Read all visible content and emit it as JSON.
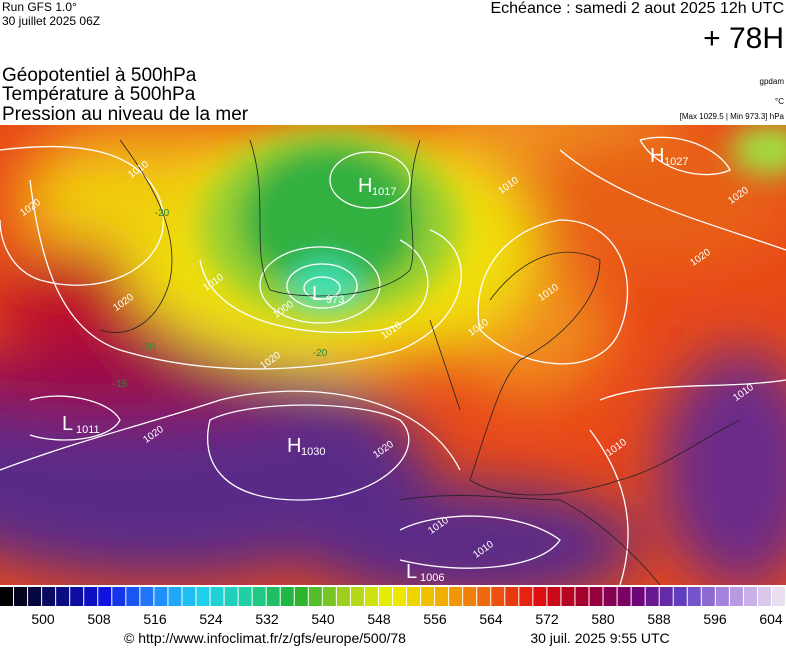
{
  "header": {
    "run": "Run GFS 1.0°",
    "run_date": "30 juillet 2025 06Z",
    "valid": "Echéance : samedi 2 aout 2025 12h UTC",
    "lead": "+ 78H",
    "fields": [
      "Géopotentiel à 500hPa",
      "Température à 500hPa",
      "Pression au niveau de la mer"
    ],
    "unit_geo": "gpdam",
    "unit_temp": "°C",
    "pressure_range": "[Max 1029.5 | Min 973.3] hPa"
  },
  "map": {
    "centers": [
      {
        "letter": "H",
        "pressure": 1017
      },
      {
        "letter": "L",
        "pressure": 973
      },
      {
        "letter": "H",
        "pressure": 1027
      },
      {
        "letter": "L",
        "pressure": 1011
      },
      {
        "letter": "H",
        "pressure": 1030
      },
      {
        "letter": "L",
        "pressure": 1006
      }
    ],
    "isobar_labels": [
      1010,
      1020,
      1020,
      1010,
      1000,
      1010,
      1020,
      1020,
      1020,
      1010,
      1020,
      1020,
      1010,
      1010,
      1010,
      1010,
      1010,
      1010
    ],
    "temperature_labels": [
      -20,
      -20,
      -20,
      -15
    ]
  },
  "colorbar": {
    "ticks": [
      500,
      508,
      516,
      524,
      532,
      540,
      548,
      556,
      564,
      572,
      580,
      588,
      596,
      604
    ],
    "stops": [
      "#000000",
      "#0a0a70",
      "#1010e0",
      "#2080ff",
      "#20d0f0",
      "#20d0a0",
      "#20b030",
      "#a0d020",
      "#f0f000",
      "#f0b000",
      "#f06010",
      "#e01010",
      "#a00030",
      "#700070",
      "#6040c0",
      "#b090e0",
      "#e8e0f0"
    ]
  },
  "footer": {
    "url": "© http://www.infoclimat.fr/z/gfs/europe/500/78",
    "generated": "30 juil. 2025  9:55 UTC"
  }
}
